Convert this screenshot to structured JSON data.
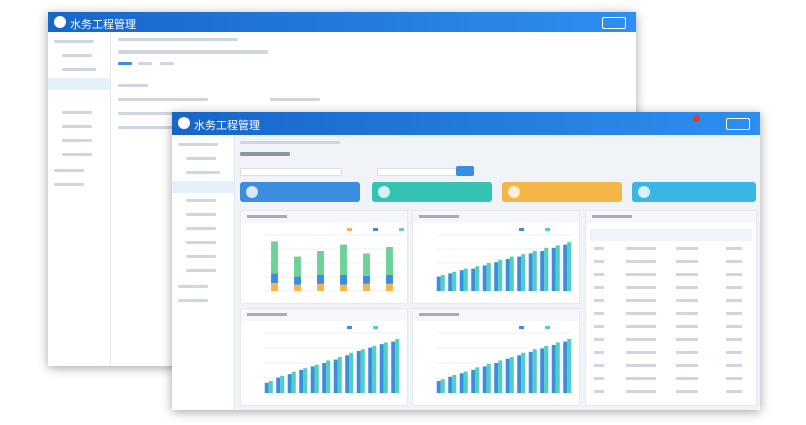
{
  "screens": [
    {
      "header": {
        "title": "水务工程管理"
      }
    },
    {
      "header": {
        "title": "水务工程管理"
      },
      "charts": [
        {
          "type": "stacked-bar",
          "ylim": [
            0,
            70
          ],
          "series": [
            {
              "color": "#f5b547",
              "values": [
                10,
                8,
                9,
                8,
                9,
                9
              ]
            },
            {
              "color": "#3b8de0",
              "values": [
                12,
                10,
                11,
                12,
                10,
                11
              ]
            },
            {
              "color": "#6fd19a",
              "values": [
                40,
                25,
                30,
                38,
                28,
                35
              ]
            }
          ]
        },
        {
          "type": "bar",
          "ylim": [
            0,
            70
          ],
          "series": [
            {
              "color": "#3b8de0",
              "values": [
                18,
                22,
                26,
                28,
                32,
                36,
                40,
                43,
                47,
                50,
                54,
                58
              ]
            },
            {
              "color": "#4fd0c0",
              "values": [
                20,
                24,
                28,
                31,
                35,
                39,
                43,
                46,
                50,
                54,
                57,
                61
              ]
            }
          ]
        },
        {
          "type": "bar",
          "ylim": [
            0,
            70
          ],
          "series": [
            {
              "color": "#3b8de0",
              "values": [
                12,
                18,
                22,
                27,
                31,
                35,
                39,
                44,
                49,
                53,
                57,
                60
              ]
            },
            {
              "color": "#4fd0c0",
              "values": [
                14,
                20,
                25,
                29,
                33,
                38,
                42,
                47,
                51,
                55,
                59,
                63
              ]
            }
          ]
        },
        {
          "type": "bar",
          "ylim": [
            0,
            70
          ],
          "series": [
            {
              "color": "#3b8de0",
              "values": [
                14,
                19,
                23,
                27,
                31,
                35,
                40,
                44,
                48,
                52,
                56,
                60
              ]
            },
            {
              "color": "#4fd0c0",
              "values": [
                16,
                21,
                25,
                30,
                34,
                38,
                42,
                47,
                51,
                55,
                59,
                63
              ]
            }
          ]
        }
      ]
    }
  ]
}
